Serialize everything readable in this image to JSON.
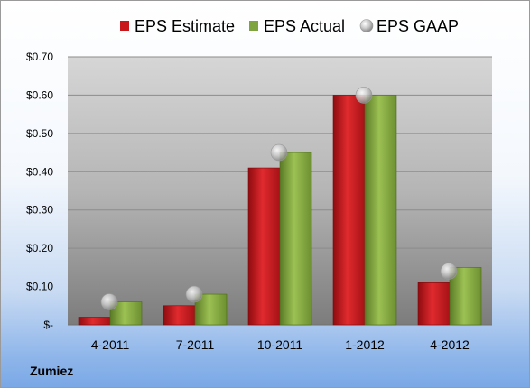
{
  "company_label": "Zumiez",
  "colors": {
    "estimate": "#c8181c",
    "actual": "#7fa33e",
    "gaap": "#b9b9b9",
    "plot_bg_top": "#d9d9d9",
    "plot_bg_bottom": "#7f7f7f"
  },
  "chart_data": {
    "type": "bar",
    "title": "",
    "xlabel": "",
    "ylabel": "",
    "ylim": [
      0,
      0.7
    ],
    "yticks": [
      0,
      0.1,
      0.2,
      0.3,
      0.4,
      0.5,
      0.6,
      0.7
    ],
    "ytick_labels": [
      "$-",
      "$0.10",
      "$0.20",
      "$0.30",
      "$0.40",
      "$0.50",
      "$0.60",
      "$0.70"
    ],
    "grid": true,
    "legend_position": "top",
    "categories": [
      "4-2011",
      "7-2011",
      "10-2011",
      "1-2012",
      "4-2012"
    ],
    "series": [
      {
        "name": "EPS Estimate",
        "type": "bar",
        "values": [
          0.02,
          0.05,
          0.41,
          0.6,
          0.11
        ]
      },
      {
        "name": "EPS Actual",
        "type": "bar",
        "values": [
          0.06,
          0.08,
          0.45,
          0.6,
          0.15
        ]
      },
      {
        "name": "EPS GAAP",
        "type": "marker",
        "values": [
          0.06,
          0.08,
          0.45,
          0.6,
          0.14
        ]
      }
    ]
  }
}
